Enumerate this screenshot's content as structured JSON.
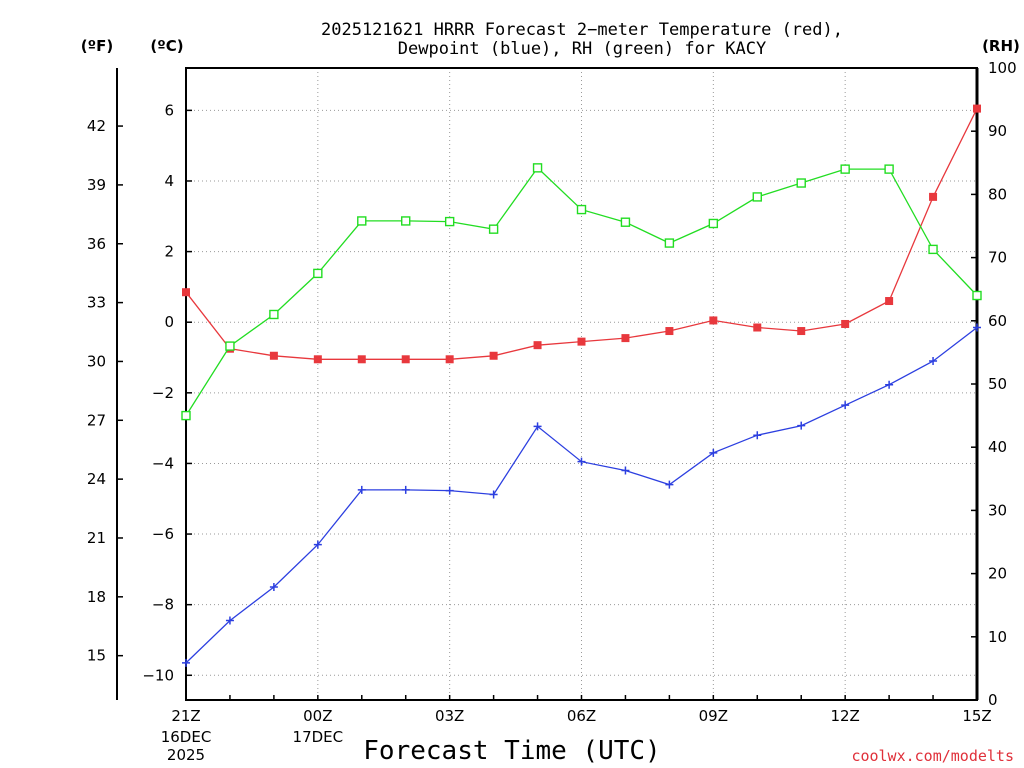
{
  "chart_data": {
    "type": "line",
    "title_line1": "2025121621 HRRR Forecast 2−meter Temperature (red),",
    "title_line2": "Dewpoint (blue), RH (green) for KACY",
    "left_outer_unit": "(ºF)",
    "left_inner_unit": "(ºC)",
    "right_unit": "(RH)",
    "xlabel": "Forecast Time (UTC)",
    "credit": "coolwx.com/modelts",
    "x_hours": [
      0,
      1,
      2,
      3,
      4,
      5,
      6,
      7,
      8,
      9,
      10,
      11,
      12,
      13,
      14,
      15,
      16,
      17,
      18
    ],
    "x_tick_hours": [
      0,
      3,
      6,
      9,
      12,
      15,
      18
    ],
    "x_tick_labels": [
      "21Z",
      "00Z",
      "03Z",
      "06Z",
      "09Z",
      "12Z",
      "15Z"
    ],
    "x_date_labels": [
      {
        "hour": 0,
        "lines": [
          "16DEC",
          "2025"
        ]
      },
      {
        "hour": 3,
        "lines": [
          "17DEC"
        ]
      }
    ],
    "celsius_ticks": [
      -10,
      -8,
      -6,
      -4,
      -2,
      0,
      2,
      4,
      6
    ],
    "celsius_labels": [
      "−10",
      "−8",
      "−6",
      "−4",
      "−2",
      "0",
      "2",
      "4",
      "6"
    ],
    "celsius_range": [
      -10.7,
      7.2
    ],
    "fahrenheit_ticks": [
      15,
      18,
      21,
      24,
      27,
      30,
      33,
      36,
      39,
      42
    ],
    "fahrenheit_labels": [
      "15",
      "18",
      "21",
      "24",
      "27",
      "30",
      "33",
      "36",
      "39",
      "42"
    ],
    "rh_ticks": [
      0,
      10,
      20,
      30,
      40,
      50,
      60,
      70,
      80,
      90,
      100
    ],
    "rh_labels": [
      "0",
      "10",
      "20",
      "30",
      "40",
      "50",
      "60",
      "70",
      "80",
      "90",
      "100"
    ],
    "rh_range": [
      0,
      100
    ],
    "series": [
      {
        "name": "2-meter Temperature",
        "axis": "celsius",
        "color": "#e8383d",
        "marker": "filled-square",
        "values": [
          0.85,
          -0.75,
          -0.95,
          -1.05,
          -1.05,
          -1.05,
          -1.05,
          -0.95,
          -0.65,
          -0.55,
          -0.45,
          -0.25,
          0.05,
          -0.15,
          -0.25,
          -0.05,
          0.6,
          3.55,
          6.05
        ]
      },
      {
        "name": "Dewpoint",
        "axis": "celsius",
        "color": "#2c3fe0",
        "marker": "plus",
        "values": [
          -9.65,
          -8.45,
          -7.5,
          -6.3,
          -4.75,
          -4.75,
          -4.77,
          -4.88,
          -2.95,
          -3.95,
          -4.2,
          -4.6,
          -3.7,
          -3.2,
          -2.93,
          -2.35,
          -1.77,
          -1.1,
          -0.15
        ]
      },
      {
        "name": "RH",
        "axis": "rh",
        "color": "#22dd22",
        "marker": "open-square",
        "values": [
          45,
          56,
          61,
          67.5,
          75.8,
          75.8,
          75.7,
          74.5,
          84.2,
          77.6,
          75.6,
          72.3,
          75.4,
          79.6,
          81.8,
          84,
          84,
          71.3,
          64
        ]
      }
    ]
  }
}
